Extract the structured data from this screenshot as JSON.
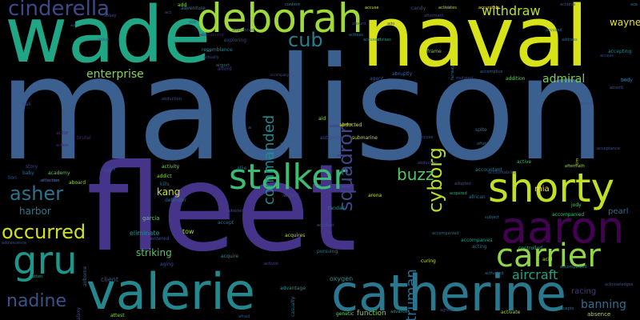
{
  "background": "#000000",
  "palette": "viridis",
  "words": [
    {
      "id": "madison",
      "text": "madison",
      "color": "#3b5f8f"
    },
    {
      "id": "fleet",
      "text": "fleet",
      "color": "#46338a"
    },
    {
      "id": "naval",
      "text": "naval",
      "color": "#d8e219"
    },
    {
      "id": "wade",
      "text": "wade",
      "color": "#21a685"
    },
    {
      "id": "deborah",
      "text": "deborah",
      "color": "#a0da39"
    },
    {
      "id": "catherine",
      "text": "catherine",
      "color": "#2a788e"
    },
    {
      "id": "valerie",
      "text": "valerie",
      "color": "#24878e"
    },
    {
      "id": "aaron",
      "text": "aaron",
      "color": "#440154"
    },
    {
      "id": "shorty",
      "text": "shorty",
      "color": "#c2df23"
    },
    {
      "id": "stalker",
      "text": "stalker",
      "color": "#3cbb75"
    },
    {
      "id": "carrier",
      "text": "carrier",
      "color": "#90d743"
    },
    {
      "id": "gru",
      "text": "gru",
      "color": "#1f968b"
    },
    {
      "id": "cinderella",
      "text": "cinderella",
      "color": "#3e4989"
    },
    {
      "id": "asher",
      "text": "asher",
      "color": "#2c728e"
    },
    {
      "id": "occurred",
      "text": "occurred",
      "color": "#d0e11c"
    },
    {
      "id": "nadine",
      "text": "nadine",
      "color": "#3b528b"
    },
    {
      "id": "cub",
      "text": "cub",
      "color": "#287d8e"
    },
    {
      "id": "squadron",
      "text": "squadron",
      "color": "#3f4788"
    },
    {
      "id": "cyborg",
      "text": "cyborg",
      "color": "#b5de2b"
    },
    {
      "id": "commanded",
      "text": "commanded",
      "color": "#23898e"
    },
    {
      "id": "buzz",
      "text": "buzz",
      "color": "#55c667"
    },
    {
      "id": "truman",
      "text": "truman",
      "color": "#2f6c8e"
    },
    {
      "id": "aircraft",
      "text": "aircraft",
      "color": "#20a486"
    },
    {
      "id": "withdraw",
      "text": "withdraw",
      "color": "#bddf26"
    },
    {
      "id": "wayne",
      "text": "wayne",
      "color": "#e5e419"
    },
    {
      "id": "enterprise",
      "text": "enterprise",
      "color": "#86d549"
    },
    {
      "id": "admiral",
      "text": "admiral",
      "color": "#7ad151"
    },
    {
      "id": "banning",
      "text": "banning",
      "color": "#2d708e"
    },
    {
      "id": "harbor",
      "text": "harbor",
      "color": "#2a788e"
    },
    {
      "id": "kang",
      "text": "kang",
      "color": "#c8e020"
    },
    {
      "id": "striking",
      "text": "striking",
      "color": "#52c569"
    },
    {
      "id": "mia",
      "text": "mia",
      "color": "#fde725"
    },
    {
      "id": "pearl",
      "text": "pearl",
      "color": "#31688e"
    },
    {
      "id": "racing",
      "text": "racing",
      "color": "#443a83"
    },
    {
      "id": "eliminate",
      "text": "eliminate",
      "color": "#218f8d"
    },
    {
      "id": "entered",
      "text": "entered",
      "color": "#3e4a89"
    },
    {
      "id": "tow",
      "text": "tow",
      "color": "#a8db34"
    },
    {
      "id": "garcia",
      "text": "garcia",
      "color": "#5ec962"
    },
    {
      "id": "defender",
      "text": "defender",
      "color": "#32648e"
    },
    {
      "id": "adolescence",
      "text": "adolescence",
      "color": "#3a538b"
    },
    {
      "id": "brutal",
      "text": "brutal",
      "color": "#482475"
    },
    {
      "id": "client",
      "text": "client",
      "color": "#365c8d"
    },
    {
      "id": "aging",
      "text": "aging",
      "color": "#3b528b"
    },
    {
      "id": "oxygen",
      "text": "oxygen",
      "color": "#21918c"
    },
    {
      "id": "function",
      "text": "function",
      "color": "#7ad151"
    },
    {
      "id": "genetic",
      "text": "genetic",
      "color": "#6ece58"
    },
    {
      "id": "absence",
      "text": "absence",
      "color": "#a5db36"
    },
    {
      "id": "activate",
      "text": "activate",
      "color": "#9fda3a"
    },
    {
      "id": "accept",
      "text": "accept",
      "color": "#2e6e8e"
    },
    {
      "id": "accompanied",
      "text": "accompanied",
      "color": "#3dbc74"
    },
    {
      "id": "accompanies",
      "text": "accompanies",
      "color": "#1f9e89"
    },
    {
      "id": "controlled",
      "text": "controlled",
      "color": "#35b779"
    },
    {
      "id": "subject",
      "text": "subject",
      "color": "#2d708e"
    },
    {
      "id": "activity",
      "text": "activity",
      "color": "#84d44b"
    },
    {
      "id": "adaptive",
      "text": "adaptive",
      "color": "#2f6c8e"
    },
    {
      "id": "addition",
      "text": "addition",
      "color": "#6ece58"
    },
    {
      "id": "acquires",
      "text": "acquires",
      "color": "#b8de29"
    },
    {
      "id": "randall",
      "text": "randall",
      "color": "#20928c"
    },
    {
      "id": "accuse",
      "text": "accuse",
      "color": "#d0e11c"
    },
    {
      "id": "adventure",
      "text": "adventure",
      "color": "#2a788e"
    },
    {
      "id": "resemblance",
      "text": "resemblance",
      "color": "#23898e"
    },
    {
      "id": "frame",
      "text": "frame",
      "color": "#7ad151"
    },
    {
      "id": "accompanying",
      "text": "accompanying",
      "color": "#3b528b"
    },
    {
      "id": "accused",
      "text": "accused",
      "color": "#2c728e"
    },
    {
      "id": "activates",
      "text": "activates",
      "color": "#b5de2b"
    },
    {
      "id": "abducted",
      "text": "abducted",
      "color": "#e2e418"
    },
    {
      "id": "academy",
      "text": "academy",
      "color": "#5ec962"
    },
    {
      "id": "aboard",
      "text": "aboard",
      "color": "#90d743"
    },
    {
      "id": "arena",
      "text": "arena",
      "color": "#bddf26"
    },
    {
      "id": "african",
      "text": "african",
      "color": "#2e6f8e"
    },
    {
      "id": "acid",
      "text": "acid",
      "color": "#b5de2b"
    },
    {
      "id": "acceptance",
      "text": "acceptance",
      "color": "#3b528b"
    },
    {
      "id": "curing",
      "text": "curing",
      "color": "#c2df23"
    },
    {
      "id": "accepting",
      "text": "accepting",
      "color": "#26828e"
    },
    {
      "id": "acquired",
      "text": "acquired",
      "color": "#29af7f"
    },
    {
      "id": "addict",
      "text": "addict",
      "color": "#8bd646"
    },
    {
      "id": "aftermath",
      "text": "aftermath",
      "color": "#3f4788"
    },
    {
      "id": "candy",
      "text": "candy",
      "color": "#39568c"
    },
    {
      "id": "jody",
      "text": "jody",
      "color": "#50c46a"
    },
    {
      "id": "navy",
      "text": "navy",
      "color": "#3b528b"
    },
    {
      "id": "absorb",
      "text": "absorb",
      "color": "#3d4e8a"
    },
    {
      "id": "abdul",
      "text": "abdul",
      "color": "#3c508b"
    },
    {
      "id": "accused2",
      "text": "accused",
      "color": "#2d708e"
    },
    {
      "id": "authority",
      "text": "authority",
      "color": "#3e4989"
    },
    {
      "id": "accountant",
      "text": "accountant",
      "color": "#2a788e"
    },
    {
      "id": "active",
      "text": "active",
      "color": "#35b779"
    },
    {
      "id": "abruptly",
      "text": "abruptly",
      "color": "#32648e"
    },
    {
      "id": "agent",
      "text": "agent",
      "color": "#3b528b"
    },
    {
      "id": "advises",
      "text": "advises",
      "color": "#20a486"
    },
    {
      "id": "spite",
      "text": "spite",
      "color": "#2c728e"
    },
    {
      "id": "afterward",
      "text": "afterward",
      "color": "#31688e"
    },
    {
      "id": "accurately",
      "text": "accurately",
      "color": "#fde725"
    },
    {
      "id": "aftermath2",
      "text": "aftermath",
      "color": "#9fda3a"
    },
    {
      "id": "acquire",
      "text": "acquire",
      "color": "#20928c"
    },
    {
      "id": "abduction",
      "text": "abduction",
      "color": "#3e4a89"
    },
    {
      "id": "abduction2",
      "text": "abduction",
      "color": "#3b528b"
    },
    {
      "id": "airport",
      "text": "airport",
      "color": "#2d708e"
    },
    {
      "id": "aside",
      "text": "aside",
      "color": "#46327e"
    },
    {
      "id": "accompanied2",
      "text": "accompanied",
      "color": "#21918c"
    },
    {
      "id": "adopted",
      "text": "adopted",
      "color": "#3e4989"
    },
    {
      "id": "absurd",
      "text": "absurd",
      "color": "#424086"
    },
    {
      "id": "actor",
      "text": "actor",
      "color": "#482475"
    },
    {
      "id": "attraction",
      "text": "attraction",
      "color": "#39568c"
    },
    {
      "id": "submarine",
      "text": "submarine",
      "color": "#bddf26"
    },
    {
      "id": "exploring",
      "text": "exploring",
      "color": "#3e4989"
    },
    {
      "id": "afford",
      "text": "afford",
      "color": "#443983"
    },
    {
      "id": "abandoning",
      "text": "abandoning",
      "color": "#481f70"
    },
    {
      "id": "accident",
      "text": "accident",
      "color": "#3a548c"
    },
    {
      "id": "allie",
      "text": "allie",
      "color": "#2e6e8e"
    },
    {
      "id": "accuse2",
      "text": "accuse",
      "color": "#3b528b"
    },
    {
      "id": "acting",
      "text": "acting",
      "color": "#2d708e"
    },
    {
      "id": "attest",
      "text": "attest",
      "color": "#84d44b"
    },
    {
      "id": "atten",
      "text": "atten",
      "color": "#20a486"
    },
    {
      "id": "advantage",
      "text": "advantage",
      "color": "#21918c"
    },
    {
      "id": "pursuing",
      "text": "pursuing",
      "color": "#2a788e"
    },
    {
      "id": "casualty",
      "text": "casualty",
      "color": "#2c728e"
    },
    {
      "id": "galaxy",
      "text": "galaxy",
      "color": "#3b528b"
    },
    {
      "id": "airborne",
      "text": "airborne",
      "color": "#31688e"
    },
    {
      "id": "accepts",
      "text": "accepts",
      "color": "#2c728e"
    },
    {
      "id": "acknowledges",
      "text": "acknowledges",
      "color": "#3b528b"
    },
    {
      "id": "agreed",
      "text": "agreed",
      "color": "#3e4a89"
    },
    {
      "id": "activated",
      "text": "activated",
      "color": "#2d708e"
    },
    {
      "id": "afraid",
      "text": "afraid",
      "color": "#39568c"
    },
    {
      "id": "affection",
      "text": "affection",
      "color": "#3e4a89"
    },
    {
      "id": "accountabil",
      "text": "accountability",
      "color": "#3e4989"
    },
    {
      "id": "advance",
      "text": "advance",
      "color": "#1f9e89"
    },
    {
      "id": "accompanied3",
      "text": "accompanied",
      "color": "#2e6e8e"
    },
    {
      "id": "actress",
      "text": "actress",
      "color": "#2c728e"
    },
    {
      "id": "adopted2",
      "text": "adopted",
      "color": "#3b528b"
    },
    {
      "id": "access",
      "text": "access",
      "color": "#3f4788"
    },
    {
      "id": "address",
      "text": "address",
      "color": "#2f6c8e"
    },
    {
      "id": "abandoned",
      "text": "abandoned",
      "color": "#3c508b"
    },
    {
      "id": "achieve",
      "text": "achieve",
      "color": "#3b528b"
    },
    {
      "id": "mutated",
      "text": "mutated",
      "color": "#3f4788"
    },
    {
      "id": "accomplice",
      "text": "accomplice",
      "color": "#2c728e"
    },
    {
      "id": "content",
      "text": "content",
      "color": "#26828e"
    },
    {
      "id": "fairway",
      "text": "fairway",
      "color": "#2d708e"
    },
    {
      "id": "abbey",
      "text": "abbey",
      "color": "#3e4a89"
    },
    {
      "id": "add",
      "text": "add",
      "color": "#90d743"
    },
    {
      "id": "side",
      "text": "side",
      "color": "#3b528b"
    },
    {
      "id": "actually",
      "text": "actually",
      "color": "#3e4989"
    },
    {
      "id": "action",
      "text": "action",
      "color": "#482475"
    },
    {
      "id": "abbot",
      "text": "abbot",
      "color": "#3b528b"
    },
    {
      "id": "activist",
      "text": "activist",
      "color": "#3e4989"
    },
    {
      "id": "ace",
      "text": "ace",
      "color": "#2c728e"
    },
    {
      "id": "aid",
      "text": "aid",
      "color": "#8bd646"
    },
    {
      "id": "tim",
      "text": "tim",
      "color": "#bddf26"
    },
    {
      "id": "age",
      "text": "age",
      "color": "#3b528b"
    },
    {
      "id": "kills",
      "text": "kills",
      "color": "#2f6c8e"
    },
    {
      "id": "story",
      "text": "story",
      "color": "#3e4989"
    },
    {
      "id": "lion",
      "text": "lion",
      "color": "#3b528b"
    },
    {
      "id": "hali",
      "text": "hali",
      "color": "#3e4989"
    },
    {
      "id": "baby",
      "text": "baby",
      "color": "#2d708e"
    },
    {
      "id": "ai",
      "text": "ai",
      "color": "#3b528b"
    },
    {
      "id": "aa",
      "text": "aa",
      "color": "#3f4788"
    },
    {
      "id": "abb",
      "text": "abb",
      "color": "#3b528b"
    },
    {
      "id": "body",
      "text": "body",
      "color": "#2d708e"
    },
    {
      "id": "ado",
      "text": "ado",
      "color": "#3e4989"
    },
    {
      "id": "ab",
      "text": "ab",
      "color": "#2c728e"
    },
    {
      "id": "acc",
      "text": "acc",
      "color": "#3b528b"
    },
    {
      "id": "aggy",
      "text": "aggy",
      "color": "#3e4989"
    },
    {
      "id": "wiliard",
      "text": "wiliard",
      "color": "#3e4989"
    }
  ]
}
